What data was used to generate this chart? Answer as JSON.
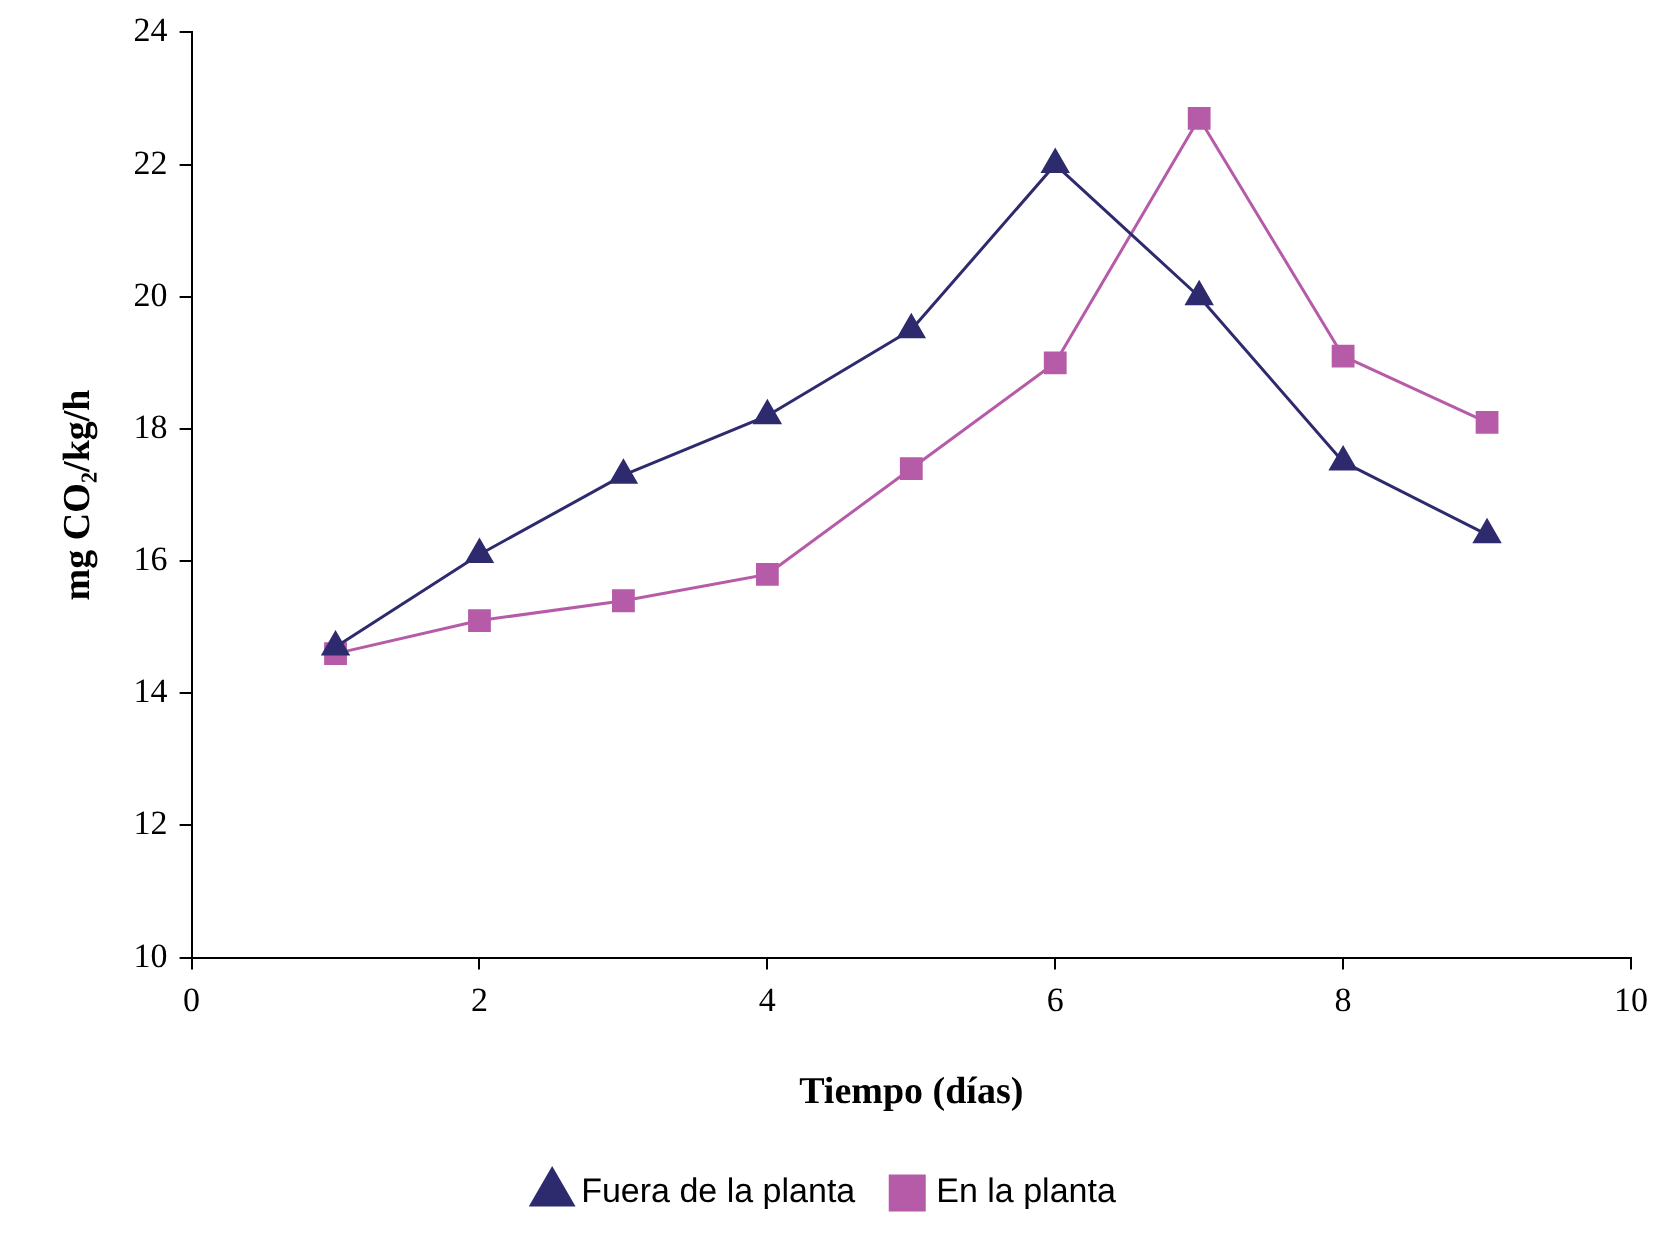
{
  "chart_data": {
    "type": "line",
    "xlabel": "Tiempo (días)",
    "ylabel": "mg CO₂/kg/h",
    "x": [
      1,
      2,
      3,
      4,
      5,
      6,
      7,
      8,
      9
    ],
    "series": [
      {
        "name": "Fuera de la planta",
        "color": "#2e2a6e",
        "marker": "triangle",
        "values": [
          14.7,
          16.1,
          17.3,
          18.2,
          19.5,
          22.0,
          20.0,
          17.5,
          16.4
        ]
      },
      {
        "name": "En la planta",
        "color": "#b65ba8",
        "marker": "square",
        "values": [
          14.6,
          15.1,
          15.4,
          15.8,
          17.4,
          19.0,
          22.7,
          19.1,
          18.1
        ]
      }
    ],
    "xlim": [
      0,
      10
    ],
    "xticks": [
      0,
      2,
      4,
      6,
      8,
      10
    ],
    "ylim": [
      10,
      24
    ],
    "yticks": [
      10,
      12,
      14,
      16,
      18,
      20,
      22,
      24
    ],
    "grid": false,
    "legend": "bottom",
    "line_style": "solid"
  }
}
